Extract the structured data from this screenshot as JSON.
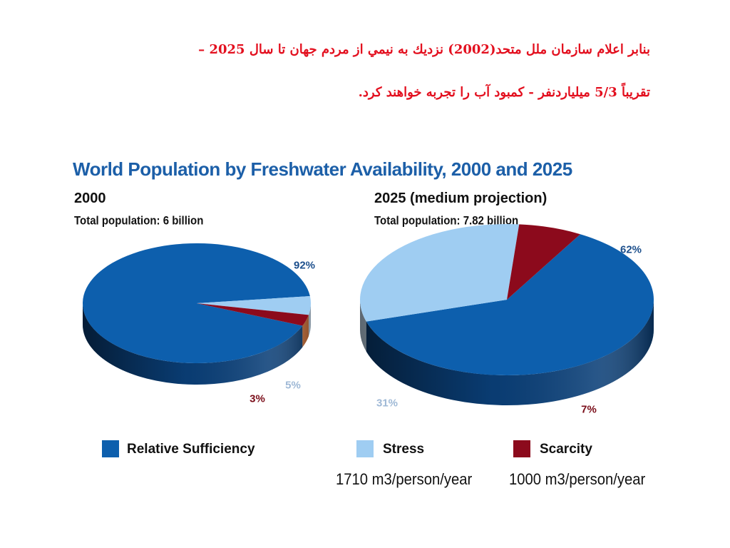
{
  "slide": {
    "heading_line_1": "بنابر اعلام سازمان ملل متحد(2002) نزديك به نيمي از مردم جهان تا سال 2025 –",
    "heading_line_2": "تقريباً 5/3 ميلياردنفر - كمبود آب را تجربه خواهند كرد."
  },
  "chart_data": {
    "type": "pie",
    "title": "World Population by Freshwater Availability, 2000 and 2025",
    "legend": [
      {
        "name": "Relative Sufficiency",
        "color": "#0d5fad"
      },
      {
        "name": "Stress",
        "color": "#9fcdf2"
      },
      {
        "name": "Scarcity",
        "color": "#8c0a1c"
      }
    ],
    "thresholds": [
      "1710 m3/person/year",
      "1000 m3/person/year"
    ],
    "pies": [
      {
        "year_label": "2000",
        "total_label": "Total population: 6 billion",
        "slices": [
          {
            "category": "Relative Sufficiency",
            "value": 92,
            "label": "92%"
          },
          {
            "category": "Stress",
            "value": 5,
            "label": "5%"
          },
          {
            "category": "Scarcity",
            "value": 3,
            "label": "3%"
          }
        ]
      },
      {
        "year_label": "2025 (medium projection)",
        "total_label": "Total population: 7.82 billion",
        "slices": [
          {
            "category": "Relative Sufficiency",
            "value": 62,
            "label": "62%"
          },
          {
            "category": "Stress",
            "value": 31,
            "label": "31%"
          },
          {
            "category": "Scarcity",
            "value": 7,
            "label": "7%"
          }
        ]
      }
    ]
  }
}
